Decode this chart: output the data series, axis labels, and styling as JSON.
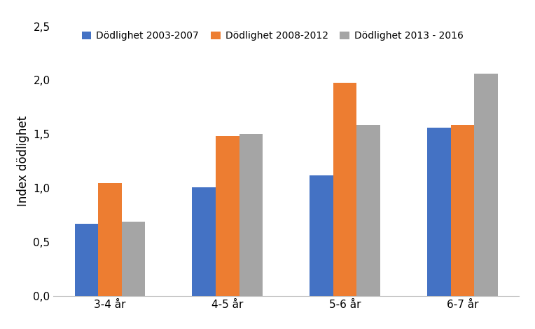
{
  "categories": [
    "3-4 år",
    "4-5 år",
    "5-6 år",
    "6-7 år"
  ],
  "series": [
    {
      "label": "Dödlighet 2003-2007",
      "color": "#4472C4",
      "values": [
        0.67,
        1.01,
        1.12,
        1.56
      ]
    },
    {
      "label": "Dödlighet 2008-2012",
      "color": "#ED7D31",
      "values": [
        1.05,
        1.48,
        1.98,
        1.59
      ]
    },
    {
      "label": "Dödlighet 2013 - 2016",
      "color": "#A5A5A5",
      "values": [
        0.69,
        1.5,
        1.59,
        2.06
      ]
    }
  ],
  "ylabel": "Index dödlighet",
  "ylim": [
    0,
    2.5
  ],
  "yticks": [
    0.0,
    0.5,
    1.0,
    1.5,
    2.0,
    2.5
  ],
  "ytick_labels": [
    "0,0",
    "0,5",
    "1,0",
    "1,5",
    "2,0",
    "2,5"
  ],
  "background_color": "#ffffff",
  "bar_width": 0.2,
  "tick_fontsize": 11,
  "label_fontsize": 12,
  "legend_fontsize": 10
}
